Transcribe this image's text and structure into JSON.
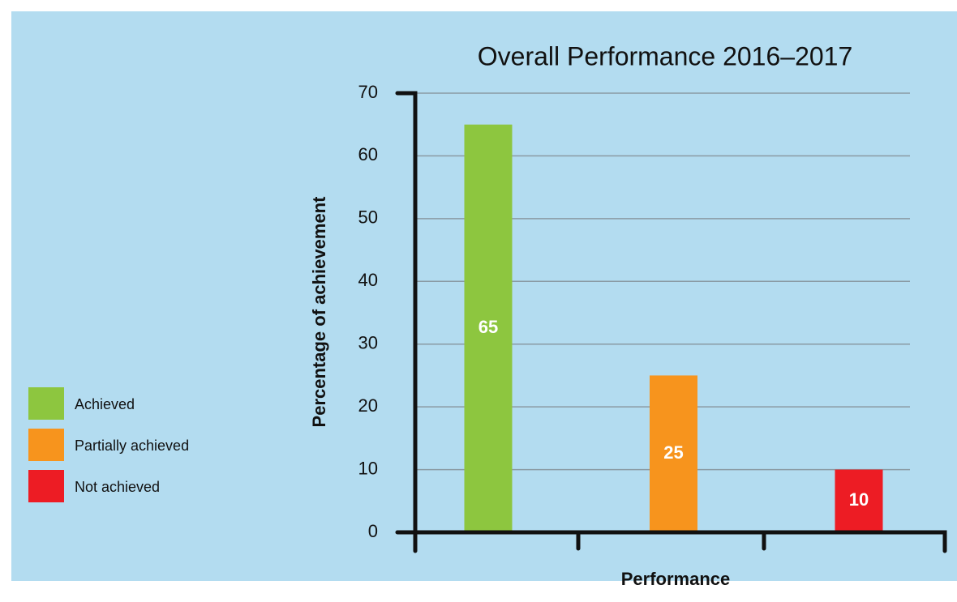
{
  "chart_data": {
    "type": "bar",
    "title": "Overall Performance 2016–2017",
    "x_label": "Performance",
    "y_label": "Percentage of achievement",
    "categories": [
      "Achieved",
      "Partially achieved",
      "Not achieved"
    ],
    "values": [
      65,
      25,
      10
    ],
    "colors": [
      "#8dc63f",
      "#f7941d",
      "#ed1c24"
    ],
    "ylim": [
      0,
      70
    ],
    "yticks": [
      0,
      10,
      20,
      30,
      40,
      50,
      60,
      70
    ],
    "grid": true,
    "legend": "left"
  }
}
